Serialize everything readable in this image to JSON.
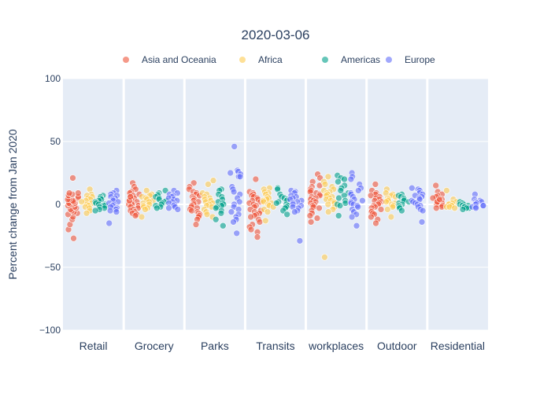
{
  "chart_data": {
    "type": "scatter",
    "title": "2020-03-06",
    "xlabel": "",
    "ylabel": "Percent change from Jan 2020",
    "ylim": [
      -100,
      100
    ],
    "yticks": [
      -100,
      -50,
      0,
      50,
      100
    ],
    "categories": [
      "Retail",
      "Grocery",
      "Parks",
      "Transits",
      "workplaces",
      "Outdoor",
      "Residential"
    ],
    "legend_position": "top",
    "grid": true,
    "series": [
      {
        "name": "Asia and Oceania",
        "color": "#EF553B",
        "values": [
          [
            21,
            -27,
            -20,
            -16,
            -12,
            -10,
            -8,
            -7,
            -6,
            -5,
            -4,
            -3,
            -2,
            -1,
            0,
            0,
            1,
            1,
            2,
            3,
            4,
            4,
            5,
            6,
            7,
            8,
            9,
            9
          ],
          [
            17,
            14,
            12,
            10,
            9,
            8,
            7,
            6,
            5,
            4,
            3,
            2,
            1,
            0,
            0,
            -1,
            -2,
            -3,
            -4,
            -5,
            -6,
            -7,
            -8,
            -9,
            3,
            6
          ],
          [
            17,
            14,
            12,
            10,
            9,
            8,
            7,
            6,
            5,
            4,
            3,
            2,
            1,
            0,
            -1,
            -2,
            -3,
            -4,
            -5,
            -6,
            -7,
            -8,
            -9,
            -10,
            -12,
            -16
          ],
          [
            20,
            10,
            9,
            8,
            7,
            6,
            5,
            4,
            3,
            2,
            1,
            0,
            -1,
            -2,
            -4,
            -5,
            -6,
            -7,
            -8,
            -9,
            -10,
            -12,
            -14,
            -16,
            -18,
            -20,
            -22,
            -26
          ],
          [
            24,
            21,
            18,
            15,
            14,
            12,
            11,
            10,
            9,
            8,
            7,
            6,
            5,
            4,
            3,
            2,
            1,
            0,
            -1,
            -2,
            -3,
            -5,
            -7,
            -9,
            -11,
            -14
          ],
          [
            16,
            11,
            9,
            8,
            7,
            6,
            5,
            4,
            3,
            2,
            1,
            0,
            -1,
            -2,
            -3,
            -4,
            -5,
            -6,
            -7,
            -8,
            -10,
            -12,
            -15
          ],
          [
            15,
            10,
            8,
            7,
            6,
            5,
            4,
            3,
            2,
            1,
            0,
            0,
            -1,
            -2,
            -3,
            2,
            4
          ]
        ]
      },
      {
        "name": "Africa",
        "color": "#FECB52",
        "values": [
          [
            12,
            8,
            7,
            6,
            5,
            4,
            3,
            2,
            1,
            0,
            -1,
            -2,
            -3,
            -5,
            -7
          ],
          [
            11,
            8,
            7,
            6,
            5,
            4,
            3,
            2,
            1,
            0,
            -1,
            -2,
            -3,
            -4,
            -10
          ],
          [
            19,
            16,
            9,
            8,
            6,
            5,
            4,
            3,
            2,
            1,
            0,
            -1,
            -2,
            -4,
            -6,
            -8,
            -10
          ],
          [
            13,
            12,
            10,
            9,
            8,
            6,
            5,
            4,
            3,
            2,
            1,
            0,
            -1,
            -2,
            -4,
            -6,
            -13
          ],
          [
            22,
            18,
            16,
            14,
            12,
            11,
            10,
            9,
            8,
            7,
            6,
            5,
            4,
            3,
            2,
            1,
            0,
            -2,
            -4,
            -6,
            -42
          ],
          [
            12,
            9,
            8,
            7,
            6,
            5,
            4,
            3,
            2,
            1,
            0,
            -1,
            -2,
            -4,
            -10
          ],
          [
            11,
            4,
            2,
            1,
            0,
            0,
            -1,
            -1,
            -2,
            -2,
            -3
          ]
        ]
      },
      {
        "name": "Americas",
        "color": "#00A08B",
        "values": [
          [
            7,
            6,
            5,
            4,
            3,
            2,
            1,
            0,
            0,
            -1,
            -1,
            -2,
            -3,
            -4,
            -5
          ],
          [
            11,
            9,
            8,
            7,
            6,
            5,
            4,
            3,
            2,
            1,
            0,
            -1,
            -2,
            -3
          ],
          [
            12,
            11,
            8,
            6,
            4,
            2,
            1,
            0,
            -1,
            -2,
            -3,
            -5,
            -7,
            -12,
            -17
          ],
          [
            13,
            12,
            8,
            6,
            5,
            4,
            3,
            2,
            1,
            0,
            -1,
            -2,
            -3,
            -5,
            -8
          ],
          [
            23,
            21,
            20,
            18,
            15,
            13,
            11,
            9,
            7,
            5,
            3,
            1,
            0,
            -1,
            -9
          ],
          [
            8,
            7,
            6,
            5,
            4,
            3,
            2,
            1,
            0,
            -1,
            -2,
            -3,
            -5
          ],
          [
            2,
            1,
            0,
            0,
            -1,
            -1,
            -2,
            -2,
            -3,
            -3,
            -4
          ]
        ]
      },
      {
        "name": "Europe",
        "color": "#636EFA",
        "values": [
          [
            11,
            9,
            8,
            7,
            6,
            5,
            4,
            3,
            2,
            1,
            0,
            -1,
            -2,
            -3,
            -4,
            -5,
            -6,
            -15
          ],
          [
            11,
            9,
            8,
            7,
            6,
            5,
            4,
            3,
            2,
            1,
            0,
            -1,
            -2,
            -3,
            -4
          ],
          [
            46,
            27,
            26,
            25,
            24,
            22,
            22,
            14,
            12,
            10,
            8,
            5,
            2,
            0,
            -2,
            -4,
            -6,
            -8,
            -10,
            -12,
            -14,
            -23
          ],
          [
            11,
            10,
            9,
            7,
            6,
            5,
            4,
            3,
            2,
            1,
            0,
            -1,
            -2,
            -3,
            -5,
            -6,
            -29
          ],
          [
            25,
            22,
            20,
            16,
            13,
            11,
            9,
            8,
            6,
            4,
            3,
            2,
            1,
            0,
            -1,
            -2,
            -4,
            -6,
            -8,
            -10,
            -17
          ],
          [
            13,
            12,
            11,
            9,
            8,
            7,
            6,
            5,
            4,
            3,
            2,
            1,
            0,
            -1,
            -2,
            -4,
            -5,
            -14
          ],
          [
            8,
            4,
            3,
            2,
            2,
            1,
            1,
            0,
            0,
            -1,
            -1,
            -2,
            -2,
            -3
          ]
        ]
      }
    ]
  }
}
